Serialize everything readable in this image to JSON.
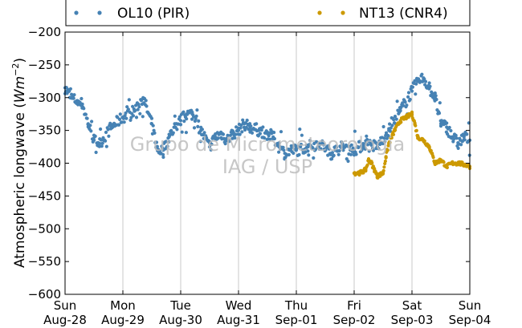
{
  "chart_data": {
    "type": "scatter",
    "ylabel": "Atmospheric longwave (",
    "ylabel_unit": "Wm",
    "ylabel_exp": "−2",
    "ylabel_close": ")",
    "ylim": [
      -600,
      -200
    ],
    "yticks": [
      "−200",
      "−250",
      "−300",
      "−350",
      "−400",
      "−450",
      "−500",
      "−550",
      "−600"
    ],
    "xlim": [
      0,
      7
    ],
    "xticks": [
      {
        "day": "Sun",
        "date": "Aug-28"
      },
      {
        "day": "Mon",
        "date": "Aug-29"
      },
      {
        "day": "Tue",
        "date": "Aug-30"
      },
      {
        "day": "Wed",
        "date": "Aug-31"
      },
      {
        "day": "Thu",
        "date": "Sep-01"
      },
      {
        "day": "Fri",
        "date": "Sep-02"
      },
      {
        "day": "Sat",
        "date": "Sep-03"
      },
      {
        "day": "Sun",
        "date": "Sep-04"
      }
    ],
    "grid": "vertical",
    "legend_position": "top",
    "watermark": [
      "Grupo de Micrometeorologia",
      "IAG / USP"
    ],
    "series": [
      {
        "name": "OL10 (PIR)",
        "color": "#4682b4",
        "x": [
          0.0,
          0.1,
          0.2,
          0.3,
          0.4,
          0.5,
          0.6,
          0.8,
          1.0,
          1.2,
          1.35,
          1.5,
          1.6,
          1.7,
          1.8,
          1.9,
          2.0,
          2.1,
          2.2,
          2.35,
          2.5,
          2.6,
          2.7,
          2.8,
          2.9,
          3.0,
          3.1,
          3.2,
          3.35,
          3.5,
          3.6,
          3.7,
          3.8,
          3.9,
          4.0,
          4.2,
          4.4,
          4.6,
          4.8,
          5.0,
          5.2,
          5.4,
          5.6,
          5.8,
          6.0,
          6.1,
          6.2,
          6.3,
          6.4,
          6.5,
          6.6,
          6.7,
          6.8,
          6.9,
          7.0
        ],
        "y": [
          -285,
          -300,
          -305,
          -310,
          -340,
          -365,
          -370,
          -345,
          -330,
          -320,
          -300,
          -340,
          -380,
          -380,
          -360,
          -345,
          -335,
          -325,
          -325,
          -350,
          -375,
          -360,
          -355,
          -365,
          -355,
          -350,
          -340,
          -345,
          -350,
          -355,
          -360,
          -375,
          -385,
          -380,
          -380,
          -375,
          -370,
          -385,
          -375,
          -380,
          -370,
          -375,
          -350,
          -320,
          -290,
          -275,
          -270,
          -285,
          -300,
          -340,
          -345,
          -360,
          -370,
          -360,
          -365
        ]
      },
      {
        "name": "NT13 (CNR4)",
        "color": "#cc9900",
        "x": [
          5.0,
          5.1,
          5.2,
          5.25,
          5.3,
          5.35,
          5.4,
          5.5,
          5.55,
          5.6,
          5.7,
          5.8,
          5.9,
          6.0,
          6.05,
          6.1,
          6.2,
          6.3,
          6.4,
          6.5,
          6.6,
          6.7,
          6.8,
          6.9,
          7.0
        ],
        "y": [
          -415,
          -415,
          -410,
          -395,
          -400,
          -410,
          -420,
          -415,
          -390,
          -370,
          -350,
          -335,
          -330,
          -325,
          -340,
          -360,
          -365,
          -375,
          -400,
          -395,
          -405,
          -400,
          -400,
          -402,
          -405
        ]
      }
    ]
  }
}
